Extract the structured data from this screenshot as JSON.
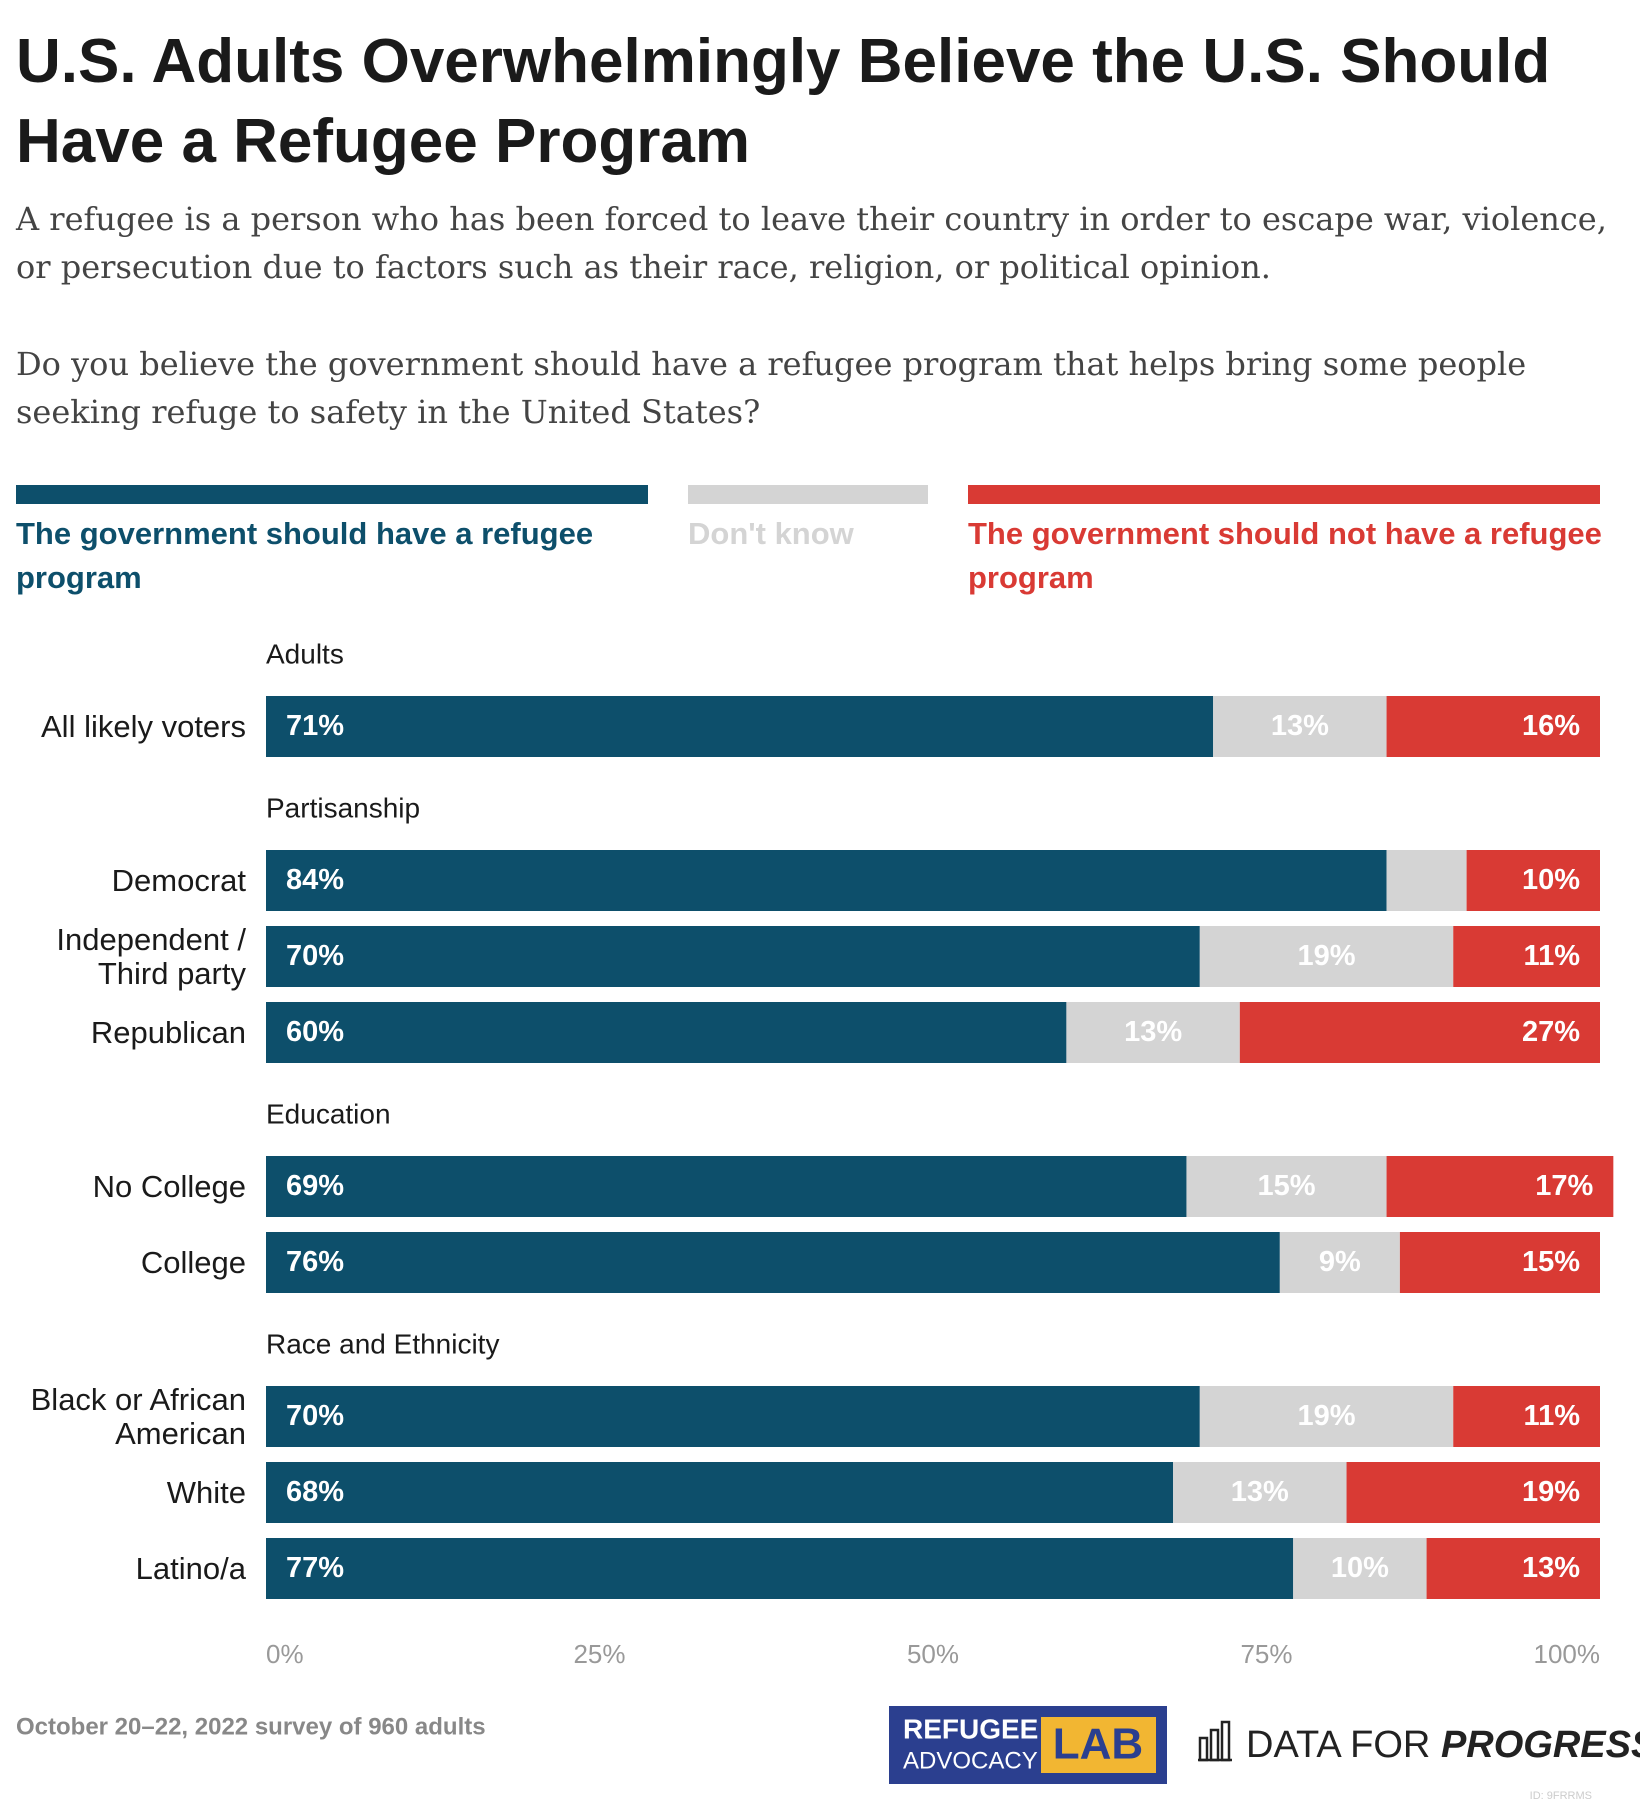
{
  "chart_data": {
    "type": "stacked-bar",
    "title": "U.S. Adults Overwhelmingly Believe the U.S. Should Have a Refugee Program",
    "subtitle": [
      "A refugee is a person who has been forced to leave their country in order to escape war, violence, or persecution due to factors such as their race, religion, or political opinion.",
      "Do you believe the government should have a refugee program that helps bring some people seeking refuge to safety in the United States?"
    ],
    "groups": [
      {
        "name": "Adults",
        "categories": [
          "All likely voters"
        ]
      },
      {
        "name": "Partisanship",
        "categories": [
          "Democrat",
          "Independent / Third party",
          "Republican"
        ]
      },
      {
        "name": "Education",
        "categories": [
          "No College",
          "College"
        ]
      },
      {
        "name": "Race and Ethnicity",
        "categories": [
          "Black or African American",
          "White",
          "Latino/a"
        ]
      }
    ],
    "series": [
      {
        "name": "The government should have a refugee program",
        "color": "#0d4f6b",
        "values": [
          71,
          84,
          70,
          60,
          69,
          76,
          70,
          68,
          77
        ],
        "value_labels": [
          "71%",
          "84%",
          "70%",
          "60%",
          "69%",
          "76%",
          "70%",
          "68%",
          "77%"
        ]
      },
      {
        "name": "Don't know",
        "color": "#d4d4d4",
        "values": [
          13,
          6,
          19,
          13,
          15,
          9,
          19,
          13,
          10
        ],
        "value_labels": [
          "13%",
          null,
          "19%",
          "13%",
          "15%",
          "9%",
          "19%",
          "13%",
          "10%"
        ]
      },
      {
        "name": "The government should not have a refugee program",
        "color": "#d93a34",
        "values": [
          16,
          10,
          11,
          27,
          17,
          15,
          11,
          19,
          13
        ],
        "value_labels": [
          "16%",
          "10%",
          "11%",
          "27%",
          "17%",
          "15%",
          "11%",
          "19%",
          "13%"
        ]
      }
    ],
    "xlim": [
      0,
      100
    ],
    "xticks": [
      {
        "value": 0,
        "label": "0%"
      },
      {
        "value": 25,
        "label": "25%"
      },
      {
        "value": 50,
        "label": "50%"
      },
      {
        "value": 75,
        "label": "75%"
      },
      {
        "value": 100,
        "label": "100%"
      }
    ],
    "note": "October 20–22, 2022 survey of 960 adults",
    "logos": {
      "left_top": "REFUGEE",
      "left_bottom": "ADVOCACY",
      "left_box": "LAB",
      "right_plain": "DATA FOR",
      "right_bold": "PROGRESS"
    },
    "id_note": "ID: 9FRRMS"
  }
}
